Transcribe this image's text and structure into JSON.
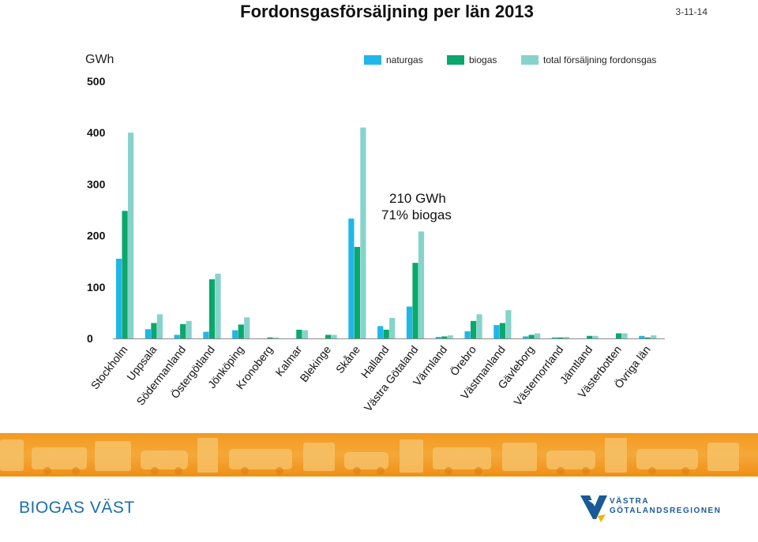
{
  "slide": {
    "title": "Fordonsgasförsäljning per län 2013",
    "date": "3-11-14",
    "brand": "BIOGAS VÄST",
    "logo_line1": "VÄSTRA",
    "logo_line2": "GÖTALANDSREGIONEN"
  },
  "colors": {
    "naturgas": "#1fb7ea",
    "biogas": "#0aa86a",
    "total": "#86d3cc",
    "accent_band": "#f39a1f",
    "brand_blue": "#1a6fae"
  },
  "chart_data": {
    "type": "bar",
    "unit_label": "GWh",
    "ylim": [
      0,
      500
    ],
    "yticks": [
      "0",
      "100",
      "200",
      "300",
      "400",
      "500"
    ],
    "grid": false,
    "legend_position": "top-right",
    "annotation": [
      "210 GWh",
      "71% biogas"
    ],
    "categories": [
      "Stockholm",
      "Uppsala",
      "Södermanland",
      "Östergötland",
      "Jönköping",
      "Kronoberg",
      "Kalmar",
      "Blekinge",
      "Skåne",
      "Halland",
      "Västra Götaland",
      "Värmland",
      "Örebro",
      "Västmanland",
      "Gävleborg",
      "Västernorrland",
      "Jämtland",
      "Västerbotten",
      "Övriga län"
    ],
    "series": [
      {
        "name": "naturgas",
        "values": [
          155,
          18,
          7,
          13,
          16,
          0,
          0,
          0,
          233,
          24,
          62,
          3,
          14,
          26,
          4,
          2,
          0,
          0,
          5
        ]
      },
      {
        "name": "biogas",
        "values": [
          248,
          30,
          28,
          115,
          27,
          2,
          17,
          7,
          178,
          17,
          147,
          4,
          34,
          30,
          7,
          2,
          5,
          10,
          2
        ]
      },
      {
        "name": "total försäljning fordonsgas",
        "values": [
          400,
          47,
          34,
          126,
          41,
          2,
          16,
          7,
          410,
          40,
          208,
          6,
          47,
          55,
          10,
          3,
          5,
          10,
          6
        ]
      }
    ]
  }
}
